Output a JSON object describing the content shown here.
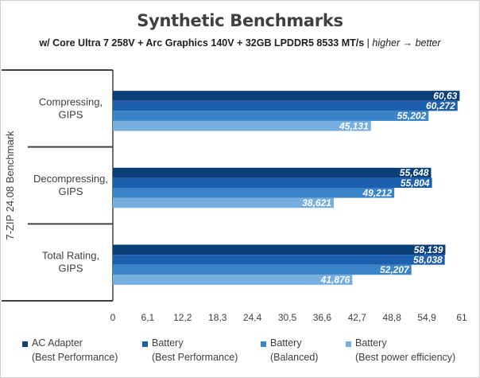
{
  "title": "Synthetic Benchmarks",
  "subtitle": {
    "bold": "w/ Core Ultra 7 258V + Arc Graphics 140V + 32GB LPDDR5 8533 MT/s",
    "separator": " | ",
    "italic": "higher → better"
  },
  "chart_data": {
    "type": "bar",
    "orientation": "horizontal",
    "group_label": "7-ZIP 24.08 Benchmark",
    "categories": [
      "Compressing, GIPS",
      "Decompressing, GIPS",
      "Total Rating, GIPS"
    ],
    "series": [
      {
        "name": "AC Adapter (Best Performance)",
        "color": "#0b3f7a",
        "values": [
          60.63,
          55.648,
          58.139
        ],
        "labels": [
          "60,63",
          "55,648",
          "58,139"
        ]
      },
      {
        "name": "Battery (Best Performance)",
        "color": "#1c5fae",
        "values": [
          60.272,
          55.804,
          58.038
        ],
        "labels": [
          "60,272",
          "55,804",
          "58,038"
        ]
      },
      {
        "name": "Battery (Balanced)",
        "color": "#3a84c9",
        "values": [
          55.202,
          49.212,
          52.207
        ],
        "labels": [
          "55,202",
          "49,212",
          "52,207"
        ]
      },
      {
        "name": "Battery (Best power efficiency)",
        "color": "#76aee0",
        "values": [
          45.131,
          38.621,
          41.876
        ],
        "labels": [
          "45,131",
          "38,621",
          "41,876"
        ]
      }
    ],
    "xlim": [
      0,
      61
    ],
    "x_ticks": [
      "0",
      "6,1",
      "12,2",
      "18,3",
      "24,4",
      "30,5",
      "36,6",
      "42,7",
      "48,8",
      "54,9",
      "61"
    ],
    "gridlines": false,
    "legend_position": "bottom"
  },
  "legend": [
    {
      "line1": "AC Adapter",
      "line2": "(Best Performance)",
      "color": "#0b3f7a"
    },
    {
      "line1": "Battery",
      "line2": "(Best Performance)",
      "color": "#1c5fae"
    },
    {
      "line1": "Battery",
      "line2": "(Balanced)",
      "color": "#3a84c9"
    },
    {
      "line1": "Battery",
      "line2": "(Best power efficiency)",
      "color": "#76aee0"
    }
  ]
}
